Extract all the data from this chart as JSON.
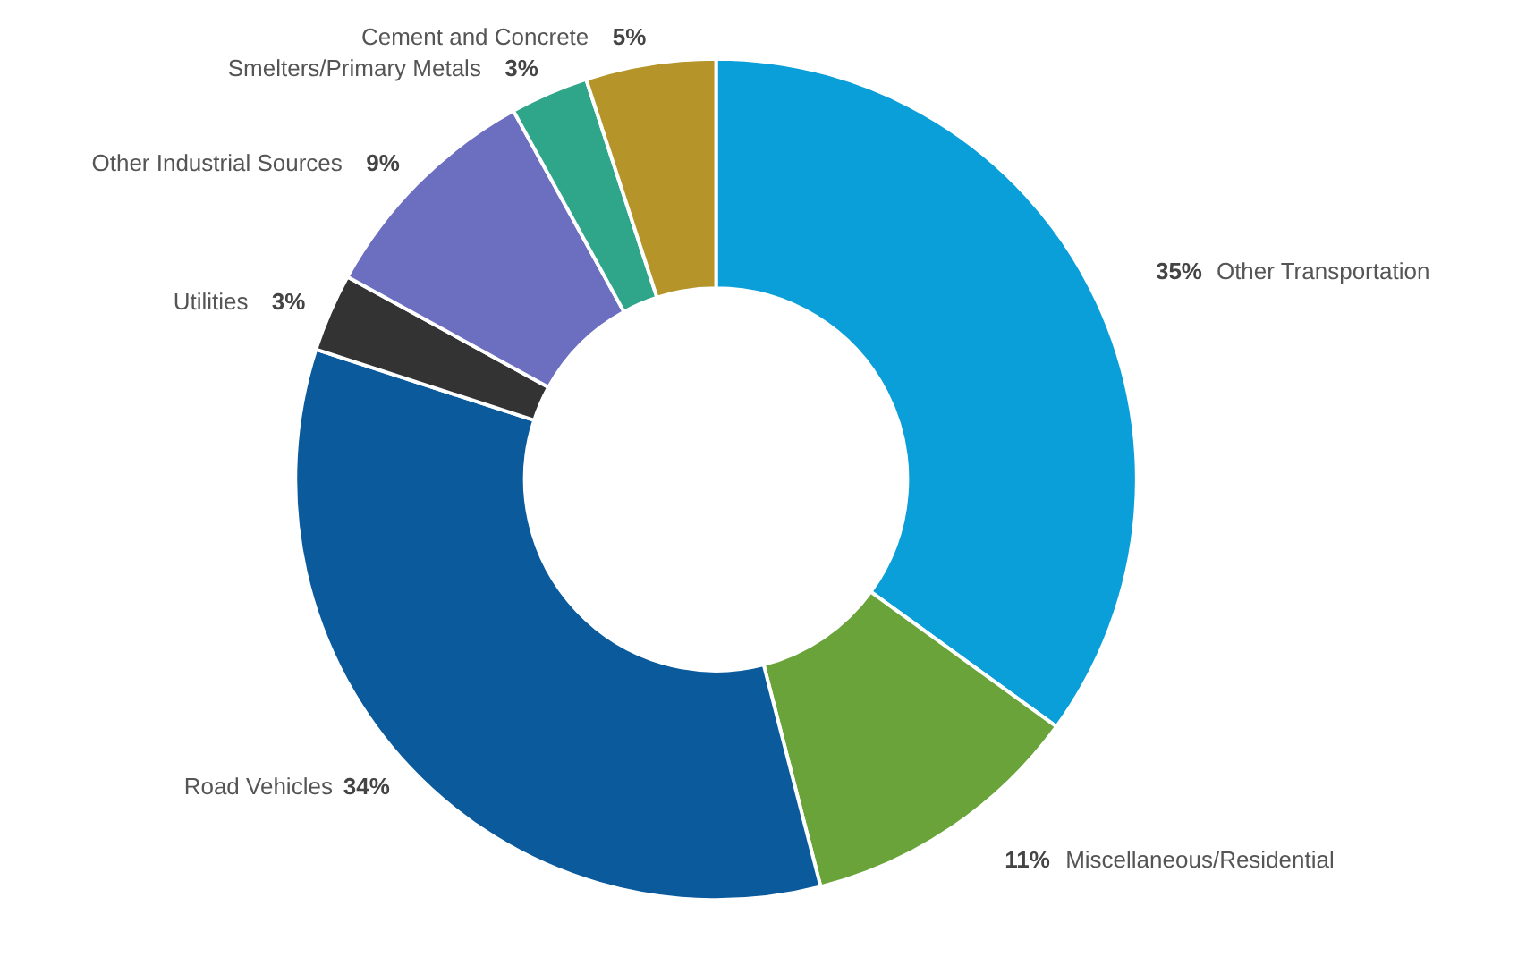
{
  "chart_data": {
    "type": "donut",
    "categories": [
      "Other Transportation",
      "Miscellaneous/Residential",
      "Road Vehicles",
      "Utilities",
      "Other Industrial Sources",
      "Smelters/Primary Metals",
      "Cement and Concrete"
    ],
    "values": [
      35,
      11,
      34,
      3,
      9,
      3,
      5
    ],
    "colors": [
      "#0a9fd8",
      "#6aa33a",
      "#0a5a9c",
      "#333333",
      "#6c6fc0",
      "#2fa58a",
      "#b5952a"
    ],
    "value_labels": [
      "35%",
      "11%",
      "34%",
      "3%",
      "9%",
      "3%",
      "5%"
    ]
  }
}
